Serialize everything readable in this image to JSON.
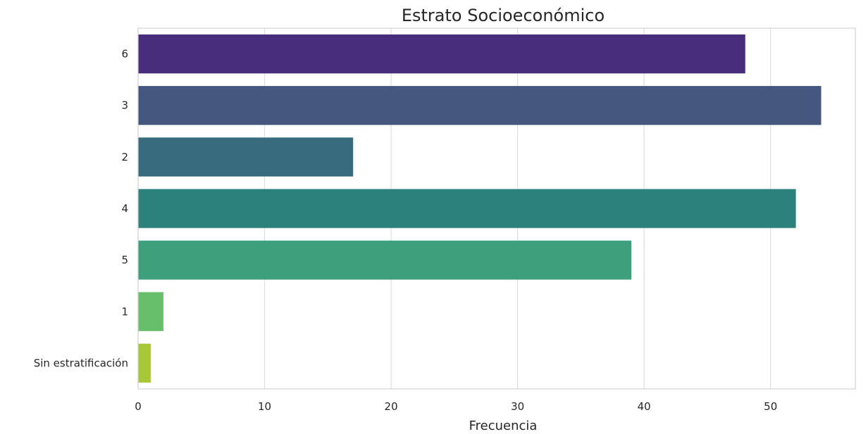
{
  "chart_data": {
    "type": "bar",
    "orientation": "horizontal",
    "title": "Estrato Socioeconómico",
    "xlabel": "Frecuencia",
    "ylabel": "",
    "categories": [
      "6",
      "3",
      "2",
      "4",
      "5",
      "1",
      "Sin estratificación"
    ],
    "values": [
      48,
      54,
      17,
      52,
      39,
      2,
      1
    ],
    "colors": [
      "#472d7b",
      "#45567f",
      "#376b7d",
      "#2d817c",
      "#3d9f7b",
      "#68bf6b",
      "#a8c837"
    ],
    "xlim": [
      0,
      56.7
    ],
    "xticks": [
      0,
      10,
      20,
      30,
      40,
      50
    ],
    "grid": "vertical",
    "legend": "none"
  }
}
